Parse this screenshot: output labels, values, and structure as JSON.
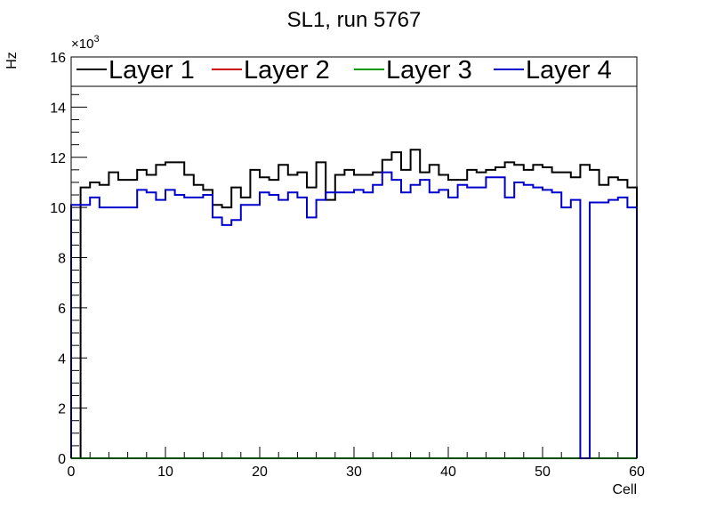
{
  "chart_data": {
    "type": "histogram",
    "title": "SL1, run 5767",
    "xlabel": "Cell",
    "ylabel": "Hz",
    "y_multiplier": {
      "base": "×10",
      "exponent": "3"
    },
    "xlim": [
      0,
      60
    ],
    "ylim": [
      0,
      16
    ],
    "x_ticks": [
      0,
      10,
      20,
      30,
      40,
      50,
      60
    ],
    "y_ticks": [
      0,
      2,
      4,
      6,
      8,
      10,
      12,
      14,
      16
    ],
    "bin_edges_start": 0,
    "bin_width": 1,
    "legend_position": "top",
    "series": [
      {
        "name": "Layer 1",
        "color": "#000000",
        "values": [
          0,
          10.8,
          11.0,
          10.9,
          11.4,
          11.1,
          11.1,
          11.5,
          11.3,
          11.7,
          11.8,
          11.8,
          11.3,
          10.9,
          10.7,
          10.1,
          10.0,
          10.8,
          10.4,
          11.5,
          11.2,
          11.1,
          11.7,
          11.3,
          11.4,
          10.8,
          11.8,
          10.3,
          11.3,
          11.5,
          11.3,
          11.3,
          11.4,
          11.9,
          12.2,
          11.5,
          12.3,
          11.4,
          11.7,
          11.3,
          11.1,
          11.1,
          11.5,
          11.4,
          11.5,
          11.6,
          11.8,
          11.7,
          11.5,
          11.7,
          11.6,
          11.4,
          11.4,
          11.2,
          11.7,
          11.5,
          10.9,
          11.2,
          11.1,
          10.8
        ]
      },
      {
        "name": "Layer 2",
        "color": "#cc0000",
        "values": [
          0,
          0,
          0,
          0,
          0,
          0,
          0,
          0,
          0,
          0,
          0,
          0,
          0,
          0,
          0,
          0,
          0,
          0,
          0,
          0,
          0,
          0,
          0,
          0,
          0,
          0,
          0,
          0,
          0,
          0,
          0,
          0,
          0,
          0,
          0,
          0,
          0,
          0,
          0,
          0,
          0,
          0,
          0,
          0,
          0,
          0,
          0,
          0,
          0,
          0,
          0,
          0,
          0,
          0,
          0,
          0,
          0,
          0,
          0,
          0
        ]
      },
      {
        "name": "Layer 3",
        "color": "#009900",
        "values": [
          0,
          0,
          0,
          0,
          0,
          0,
          0,
          0,
          0,
          0,
          0,
          0,
          0,
          0,
          0,
          0,
          0,
          0,
          0,
          0,
          0,
          0,
          0,
          0,
          0,
          0,
          0,
          0,
          0,
          0,
          0,
          0,
          0,
          0,
          0,
          0,
          0,
          0,
          0,
          0,
          0,
          0,
          0,
          0,
          0,
          0,
          0,
          0,
          0,
          0,
          0,
          0,
          0,
          0,
          0,
          0,
          0,
          0,
          0,
          0
        ]
      },
      {
        "name": "Layer 4",
        "color": "#0000cc",
        "values": [
          10.1,
          10.1,
          10.4,
          10.0,
          10.0,
          10.0,
          10.0,
          10.7,
          10.6,
          10.3,
          10.7,
          10.5,
          10.4,
          10.4,
          10.5,
          9.6,
          9.3,
          9.5,
          10.1,
          10.1,
          10.6,
          10.5,
          10.3,
          10.6,
          10.4,
          9.6,
          10.3,
          10.6,
          10.6,
          10.6,
          10.7,
          10.6,
          10.9,
          11.4,
          11.1,
          10.6,
          10.9,
          11.1,
          10.6,
          10.7,
          10.4,
          10.9,
          10.8,
          10.8,
          11.2,
          11.2,
          10.4,
          11.0,
          10.9,
          10.8,
          10.7,
          10.6,
          10.0,
          10.3,
          0,
          10.2,
          10.2,
          10.3,
          10.4,
          10.0
        ]
      }
    ]
  }
}
